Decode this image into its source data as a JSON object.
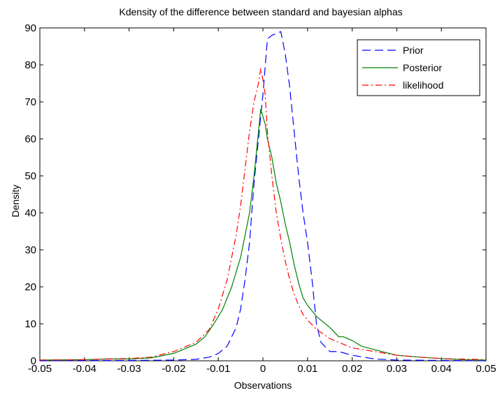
{
  "chart_data": {
    "type": "line",
    "title": "Kdensity of  the difference between standard and bayesian alphas",
    "xlabel": "Observations",
    "ylabel": "Density",
    "xlim": [
      -0.05,
      0.05
    ],
    "ylim": [
      0,
      90
    ],
    "xticks": [
      -0.05,
      -0.04,
      -0.03,
      -0.02,
      -0.01,
      0,
      0.01,
      0.02,
      0.03,
      0.04,
      0.05
    ],
    "xtick_labels": [
      "-0.05",
      "-0.04",
      "-0.03",
      "-0.02",
      "-0.01",
      "0",
      "0.01",
      "0.02",
      "0.03",
      "0.04",
      "0.05"
    ],
    "yticks": [
      0,
      10,
      20,
      30,
      40,
      50,
      60,
      70,
      80,
      90
    ],
    "ytick_labels": [
      "0",
      "10",
      "20",
      "30",
      "40",
      "50",
      "60",
      "70",
      "80",
      "90"
    ],
    "grid": false,
    "legend_position": "top-right",
    "series": [
      {
        "name": "Prior",
        "color": "#0000ff",
        "dash": "dashed",
        "x": [
          -0.05,
          -0.04,
          -0.03,
          -0.02,
          -0.015,
          -0.012,
          -0.01,
          -0.008,
          -0.007,
          -0.006,
          -0.005,
          -0.004,
          -0.003,
          -0.002,
          -0.001,
          0.0,
          0.001,
          0.002,
          0.003,
          0.004,
          0.005,
          0.006,
          0.007,
          0.008,
          0.009,
          0.01,
          0.011,
          0.012,
          0.013,
          0.015,
          0.017,
          0.02,
          0.025,
          0.03,
          0.04,
          0.05
        ],
        "y": [
          0,
          0.1,
          0.1,
          0.2,
          0.4,
          1.0,
          2.0,
          4.0,
          6.5,
          9.0,
          14.0,
          22.0,
          32.0,
          48.0,
          60.0,
          72.0,
          87.0,
          88.0,
          88.5,
          89.0,
          83.0,
          74.0,
          62.0,
          50.0,
          40.0,
          32.0,
          22.0,
          10.0,
          5.0,
          2.5,
          2.5,
          1.5,
          0.5,
          0.2,
          0.1,
          0
        ]
      },
      {
        "name": "Posterior",
        "color": "#008000",
        "dash": "solid",
        "x": [
          -0.05,
          -0.04,
          -0.035,
          -0.03,
          -0.025,
          -0.02,
          -0.015,
          -0.013,
          -0.011,
          -0.009,
          -0.007,
          -0.005,
          -0.003,
          -0.002,
          -0.001,
          -0.0005,
          0.0,
          0.0005,
          0.001,
          0.002,
          0.003,
          0.004,
          0.005,
          0.006,
          0.007,
          0.008,
          0.009,
          0.01,
          0.012,
          0.015,
          0.017,
          0.018,
          0.02,
          0.022,
          0.025,
          0.03,
          0.035,
          0.04,
          0.045,
          0.05
        ],
        "y": [
          0.2,
          0.3,
          0.5,
          0.5,
          0.8,
          2.0,
          4.5,
          6.5,
          10.0,
          14.0,
          20.0,
          28.0,
          40.0,
          50.0,
          62.0,
          68.0,
          66.0,
          64.0,
          60.0,
          55.0,
          48.0,
          43.0,
          37.0,
          32.0,
          26.0,
          21.0,
          17.0,
          15.0,
          12.0,
          9.0,
          6.5,
          6.5,
          5.5,
          4.0,
          3.0,
          1.5,
          1.0,
          0.6,
          0.3,
          0.2
        ]
      },
      {
        "name": "likelihood",
        "color": "#ff0000",
        "dash": "dash-dot",
        "x": [
          -0.05,
          -0.04,
          -0.035,
          -0.03,
          -0.025,
          -0.02,
          -0.015,
          -0.012,
          -0.01,
          -0.008,
          -0.006,
          -0.005,
          -0.004,
          -0.003,
          -0.002,
          -0.001,
          -0.0005,
          0.0,
          0.0005,
          0.001,
          0.002,
          0.003,
          0.004,
          0.005,
          0.006,
          0.007,
          0.008,
          0.009,
          0.01,
          0.012,
          0.015,
          0.02,
          0.025,
          0.03,
          0.035,
          0.04,
          0.05
        ],
        "y": [
          0.2,
          0.3,
          0.5,
          0.6,
          1.0,
          2.5,
          5.0,
          8.5,
          14.0,
          22.0,
          34.0,
          42.0,
          52.0,
          62.0,
          70.0,
          75.0,
          79.0,
          76.0,
          72.0,
          62.0,
          50.0,
          40.0,
          33.0,
          27.0,
          22.0,
          18.0,
          15.0,
          12.5,
          11.0,
          8.5,
          6.0,
          3.5,
          2.5,
          1.5,
          1.0,
          0.6,
          0.3
        ]
      }
    ]
  }
}
